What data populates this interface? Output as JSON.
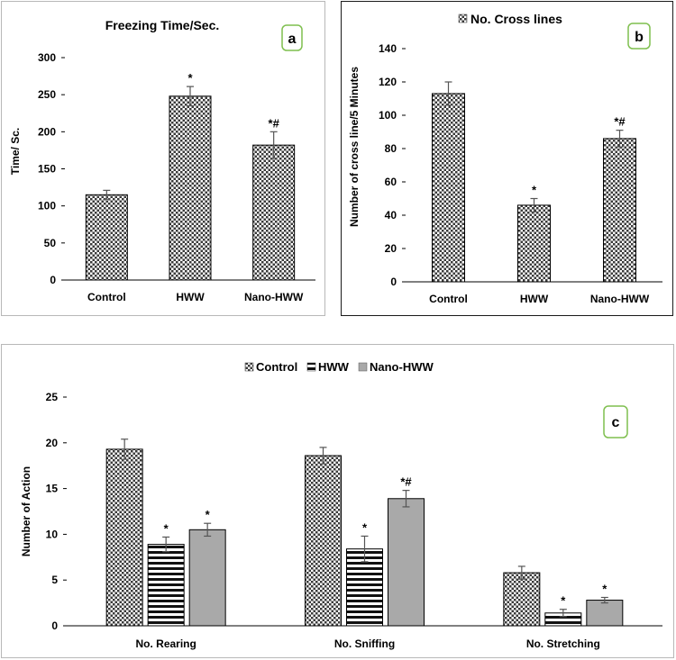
{
  "chart_data": [
    {
      "id": "a",
      "type": "bar",
      "title": "Freezing Time/Sec.",
      "panel_label": "a",
      "ylabel": "Time/ Sc.",
      "xlabel": "",
      "categories": [
        "Control",
        "HWW",
        "Nano-HWW"
      ],
      "values": [
        115,
        248,
        182
      ],
      "errors": [
        6,
        13,
        18
      ],
      "significance": [
        "",
        "*",
        "*#"
      ],
      "ylim": [
        0,
        300
      ],
      "yticks": [
        0,
        50,
        100,
        150,
        200,
        250,
        300
      ],
      "pattern": "checker"
    },
    {
      "id": "b",
      "type": "bar",
      "title": "No. Cross lines",
      "panel_label": "b",
      "legend": [
        "No. Cross lines"
      ],
      "ylabel": "Number of cross  line/5  Minutes",
      "xlabel": "",
      "categories": [
        "Control",
        "HWW",
        "Nano-HWW"
      ],
      "values": [
        113,
        46,
        86
      ],
      "errors": [
        7,
        4,
        5
      ],
      "significance": [
        "",
        "*",
        "*#"
      ],
      "ylim": [
        0,
        140
      ],
      "yticks": [
        0,
        20,
        40,
        60,
        80,
        100,
        120,
        140
      ],
      "pattern": "checker"
    },
    {
      "id": "c",
      "type": "bar",
      "panel_label": "c",
      "ylabel": "Number  of Action",
      "xlabel": "",
      "categories": [
        "No. Rearing",
        "No. Sniffing",
        "No.  Stretching"
      ],
      "series": [
        {
          "name": "Control",
          "values": [
            19.3,
            18.6,
            5.8
          ],
          "errors": [
            1.1,
            0.9,
            0.7
          ],
          "significance": [
            "",
            "",
            ""
          ],
          "pattern": "checker"
        },
        {
          "name": "HWW",
          "values": [
            8.9,
            8.4,
            1.4
          ],
          "errors": [
            0.8,
            1.4,
            0.4
          ],
          "significance": [
            "*",
            "*",
            "*"
          ],
          "pattern": "hstripe"
        },
        {
          "name": "Nano-HWW",
          "values": [
            10.5,
            13.9,
            2.8
          ],
          "errors": [
            0.7,
            0.9,
            0.3
          ],
          "significance": [
            "*",
            "*#",
            "*"
          ],
          "pattern": "gray"
        }
      ],
      "ylim": [
        0,
        25
      ],
      "yticks": [
        0,
        5,
        10,
        15,
        20,
        25
      ]
    }
  ]
}
